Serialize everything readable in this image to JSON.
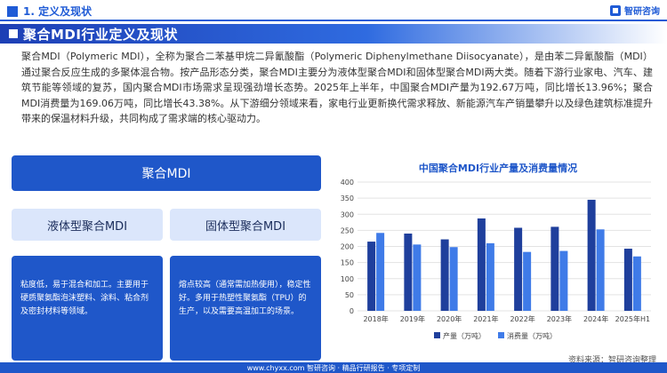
{
  "header": {
    "section_label": "1. 定义及现状",
    "brand_name": "智研咨询"
  },
  "title": "聚合MDI行业定义及现状",
  "paragraph": "聚合MDI（Polymeric MDI），全称为聚合二苯基甲烷二异氰酸酯（Polymeric Diphenylmethane Diisocyanate），是由苯二异氰酸酯（MDI）通过聚合反应生成的多聚体混合物。按产品形态分类，聚合MDI主要分为液体型聚合MDI和固体型聚合MDI两大类。随着下游行业家电、汽车、建筑节能等领域的复苏，国内聚合MDI市场需求呈现强劲增长态势。2025年上半年，中国聚合MDI产量为192.67万吨，同比增长13.96%；聚合MDI消费量为169.06万吨，同比增长43.38%。从下游细分领域来看，家电行业更新换代需求释放、新能源汽车产销量攀升以及绿色建筑标准提升带来的保温材料升级，共同构成了需求端的核心驱动力。",
  "diagram": {
    "root": "聚合MDI",
    "liquid_label": "液体型聚合MDI",
    "solid_label": "固体型聚合MDI",
    "liquid_desc": "粘度低，易于混合和加工。主要用于硬质聚氨酯泡沫塑料、涂料、粘合剂及密封材料等领域。",
    "solid_desc": "熔点较高（通常需加热使用），稳定性好。多用于热塑性聚氨酯（TPU）的生产，以及需要高温加工的场景。"
  },
  "chart_data": {
    "type": "bar",
    "title": "中国聚合MDI行业产量及消费量情况",
    "categories": [
      "2018年",
      "2019年",
      "2020年",
      "2021年",
      "2022年",
      "2023年",
      "2024年",
      "2025年H1"
    ],
    "series": [
      {
        "name": "产量（万吨）",
        "color": "#1f3f9c",
        "values": [
          215,
          240,
          222,
          287,
          258,
          261,
          345,
          193
        ]
      },
      {
        "name": "消费量（万吨）",
        "color": "#3f7be8",
        "values": [
          242,
          206,
          198,
          210,
          183,
          186,
          253,
          169
        ]
      }
    ],
    "ylim": [
      0,
      400
    ],
    "yticks": [
      0,
      50,
      100,
      150,
      200,
      250,
      300,
      350,
      400
    ],
    "grid": true,
    "legend": "bottom"
  },
  "source_text": "资料来源：智研咨询整理",
  "footer_text": "www.chyxx.com  智研咨询 · 精品行研报告 · 专项定制"
}
